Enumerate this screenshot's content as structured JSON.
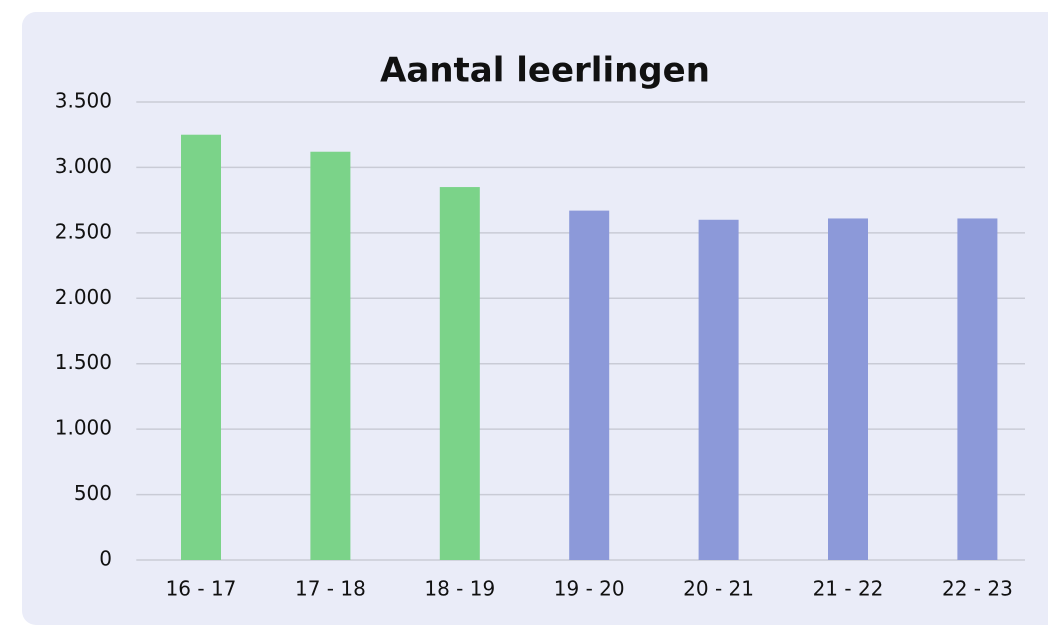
{
  "chart_data": {
    "type": "bar",
    "title": "Aantal leerlingen",
    "categories": [
      "16 - 17",
      "17 - 18",
      "18 - 19",
      "19 - 20",
      "20 - 21",
      "21 - 22",
      "22 - 23"
    ],
    "values": [
      3250,
      3120,
      2850,
      2670,
      2600,
      2610,
      2610
    ],
    "colors": [
      "#7bd389",
      "#7bd389",
      "#7bd389",
      "#8c99d9",
      "#8c99d9",
      "#8c99d9",
      "#8c99d9"
    ],
    "ylim": [
      0,
      3500
    ],
    "yticks": [
      0,
      {
        "value": 500,
        "label": "500"
      },
      {
        "value": 1000,
        "label": "1.000"
      },
      {
        "value": 1500,
        "label": "1.500"
      },
      {
        "value": 2000,
        "label": "2.000"
      },
      {
        "value": 2500,
        "label": "2.500"
      },
      {
        "value": 3000,
        "label": "3.000"
      },
      {
        "value": 3500,
        "label": "3.500"
      }
    ],
    "grid": true
  }
}
